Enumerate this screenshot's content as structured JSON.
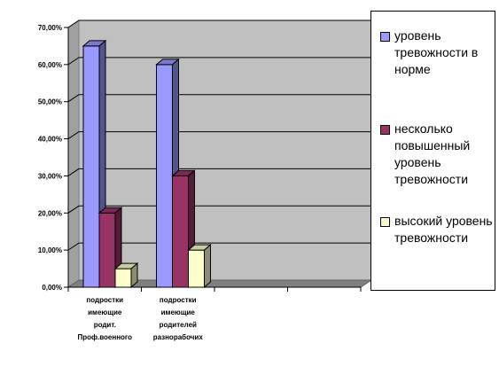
{
  "chart_data": {
    "type": "bar",
    "categories": [
      [
        "подростки",
        "имеющие",
        "родит.",
        "Проф.военного"
      ],
      [
        "подростки",
        "имеющие",
        "родителей",
        "разнорабочих"
      ],
      [
        ""
      ],
      [
        ""
      ]
    ],
    "series": [
      {
        "name": "уровень тревожности в норме",
        "color": "#9999FF",
        "values": [
          65,
          60,
          null,
          null
        ]
      },
      {
        "name": "несколько повышенный уровень тревожности",
        "color": "#993366",
        "values": [
          20,
          30,
          null,
          null
        ]
      },
      {
        "name": "высокий уровень тревожности",
        "color": "#FFFFCC",
        "values": [
          5,
          10,
          null,
          null
        ]
      }
    ],
    "ylim": [
      0,
      70
    ],
    "ytick_values": [
      0,
      10,
      20,
      30,
      40,
      50,
      60,
      70
    ],
    "ytick_labels": [
      "0,00%",
      "10,00%",
      "20,00%",
      "30,00%",
      "40,00%",
      "50,00%",
      "60,00%",
      "70,00%"
    ],
    "grid": true,
    "legend_position": "right",
    "wall_color": "#C0C0C0",
    "title": "",
    "xlabel": "",
    "ylabel": ""
  }
}
